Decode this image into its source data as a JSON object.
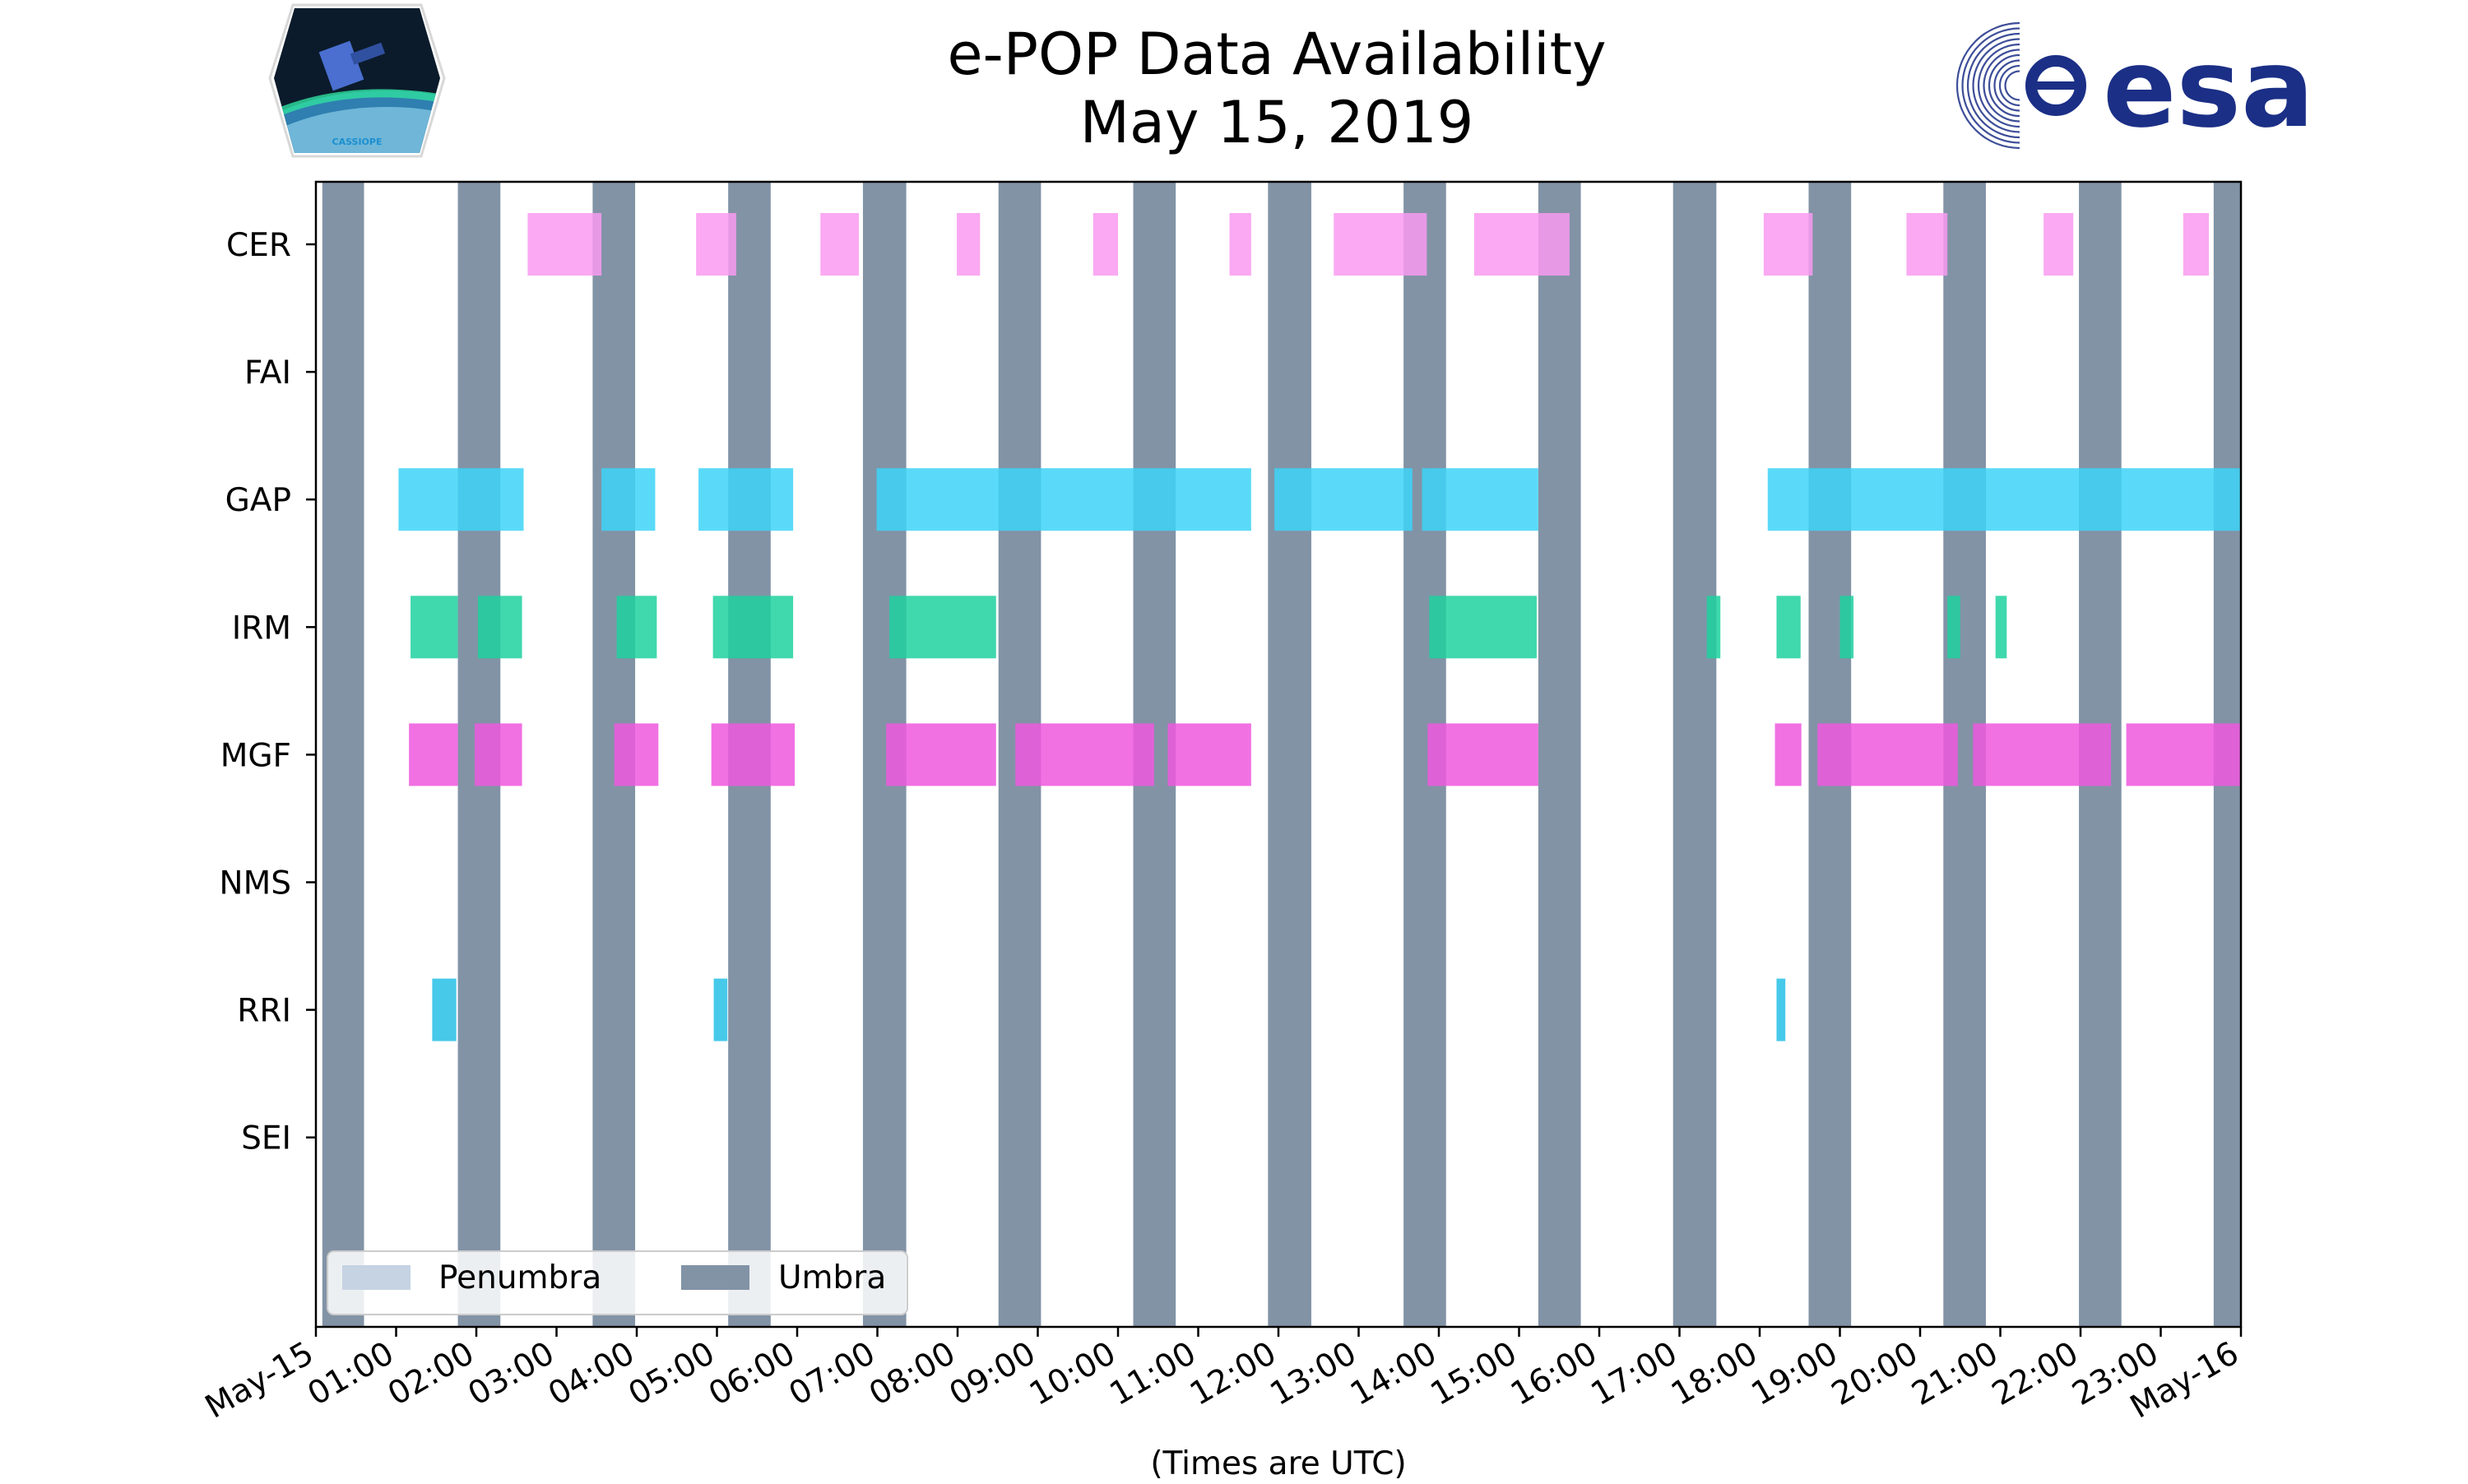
{
  "chart_data": {
    "type": "timeline",
    "title_line1": "e-POP Data Availability",
    "title_line2": "May 15, 2019",
    "xlabel": "(Times are UTC)",
    "x_unit": "hours UTC",
    "xlim": [
      0,
      24
    ],
    "instruments": [
      "CER",
      "FAI",
      "GAP",
      "IRM",
      "MGF",
      "NMS",
      "RRI",
      "SEI"
    ],
    "x_tick_labels": [
      "May-15",
      "01:00",
      "02:00",
      "03:00",
      "04:00",
      "05:00",
      "06:00",
      "07:00",
      "08:00",
      "09:00",
      "10:00",
      "11:00",
      "12:00",
      "13:00",
      "14:00",
      "15:00",
      "16:00",
      "17:00",
      "18:00",
      "19:00",
      "20:00",
      "21:00",
      "22:00",
      "23:00",
      "May-16"
    ],
    "legend": {
      "placement": "lower-left",
      "entries": [
        {
          "label": "Penumbra",
          "color": "#c5d3e3"
        },
        {
          "label": "Umbra",
          "color": "#8293a6"
        }
      ]
    },
    "umbra_intervals": [
      [
        0.08,
        0.6
      ],
      [
        1.77,
        2.3
      ],
      [
        3.45,
        3.98
      ],
      [
        5.14,
        5.67
      ],
      [
        6.82,
        7.36
      ],
      [
        8.51,
        9.04
      ],
      [
        10.19,
        10.72
      ],
      [
        11.87,
        12.41
      ],
      [
        13.56,
        14.09
      ],
      [
        15.24,
        15.77
      ],
      [
        16.92,
        17.46
      ],
      [
        18.61,
        19.14
      ],
      [
        20.29,
        20.82
      ],
      [
        21.98,
        22.51
      ],
      [
        23.66,
        24.0
      ]
    ],
    "series": [
      {
        "name": "CER",
        "color": "#f99af0",
        "intervals": [
          [
            2.64,
            3.56
          ],
          [
            4.74,
            5.24
          ],
          [
            6.29,
            6.77
          ],
          [
            7.99,
            8.28
          ],
          [
            9.69,
            10.0
          ],
          [
            11.39,
            11.66
          ],
          [
            12.69,
            13.85
          ],
          [
            14.44,
            15.63
          ],
          [
            18.05,
            18.66
          ],
          [
            19.83,
            20.34
          ],
          [
            21.54,
            21.91
          ],
          [
            23.28,
            23.6
          ]
        ]
      },
      {
        "name": "FAI",
        "color": "#f99af0",
        "intervals": []
      },
      {
        "name": "GAP",
        "color": "#3dd4f7",
        "intervals": [
          [
            1.03,
            2.59
          ],
          [
            3.56,
            4.23
          ],
          [
            4.77,
            5.95
          ],
          [
            6.99,
            11.66
          ],
          [
            11.95,
            13.67
          ],
          [
            13.79,
            15.24
          ],
          [
            18.1,
            24.0
          ]
        ]
      },
      {
        "name": "IRM",
        "color": "#1fd19f",
        "intervals": [
          [
            1.18,
            1.77
          ],
          [
            2.02,
            2.57
          ],
          [
            3.75,
            4.25
          ],
          [
            4.95,
            5.95
          ],
          [
            7.15,
            8.48
          ],
          [
            13.88,
            15.22
          ],
          [
            17.34,
            17.51
          ],
          [
            18.21,
            18.51
          ],
          [
            19.0,
            19.17
          ],
          [
            20.34,
            20.5
          ],
          [
            20.94,
            21.08
          ]
        ]
      },
      {
        "name": "MGF",
        "color": "#ef58de",
        "intervals": [
          [
            1.16,
            1.77
          ],
          [
            1.98,
            2.57
          ],
          [
            3.72,
            4.27
          ],
          [
            4.93,
            5.97
          ],
          [
            7.11,
            8.48
          ],
          [
            8.72,
            10.45
          ],
          [
            10.62,
            11.66
          ],
          [
            13.86,
            15.24
          ],
          [
            18.19,
            18.52
          ],
          [
            18.72,
            20.47
          ],
          [
            20.66,
            22.38
          ],
          [
            22.57,
            24.0
          ]
        ]
      },
      {
        "name": "NMS",
        "color": "#ef58de",
        "intervals": []
      },
      {
        "name": "RRI",
        "color": "#27c0e6",
        "intervals": [
          [
            1.45,
            1.75
          ],
          [
            4.96,
            5.13
          ],
          [
            18.21,
            18.32
          ]
        ]
      },
      {
        "name": "SEI",
        "color": "#27c0e6",
        "intervals": []
      }
    ]
  },
  "logos": {
    "cassiope_label": "CASSIOPE",
    "esa_wordmark": "esa",
    "esa_color": "#1b2f86"
  },
  "colors": {
    "umbra": "#8293a6",
    "penumbra": "#c5d3e3",
    "axis": "#000000"
  }
}
